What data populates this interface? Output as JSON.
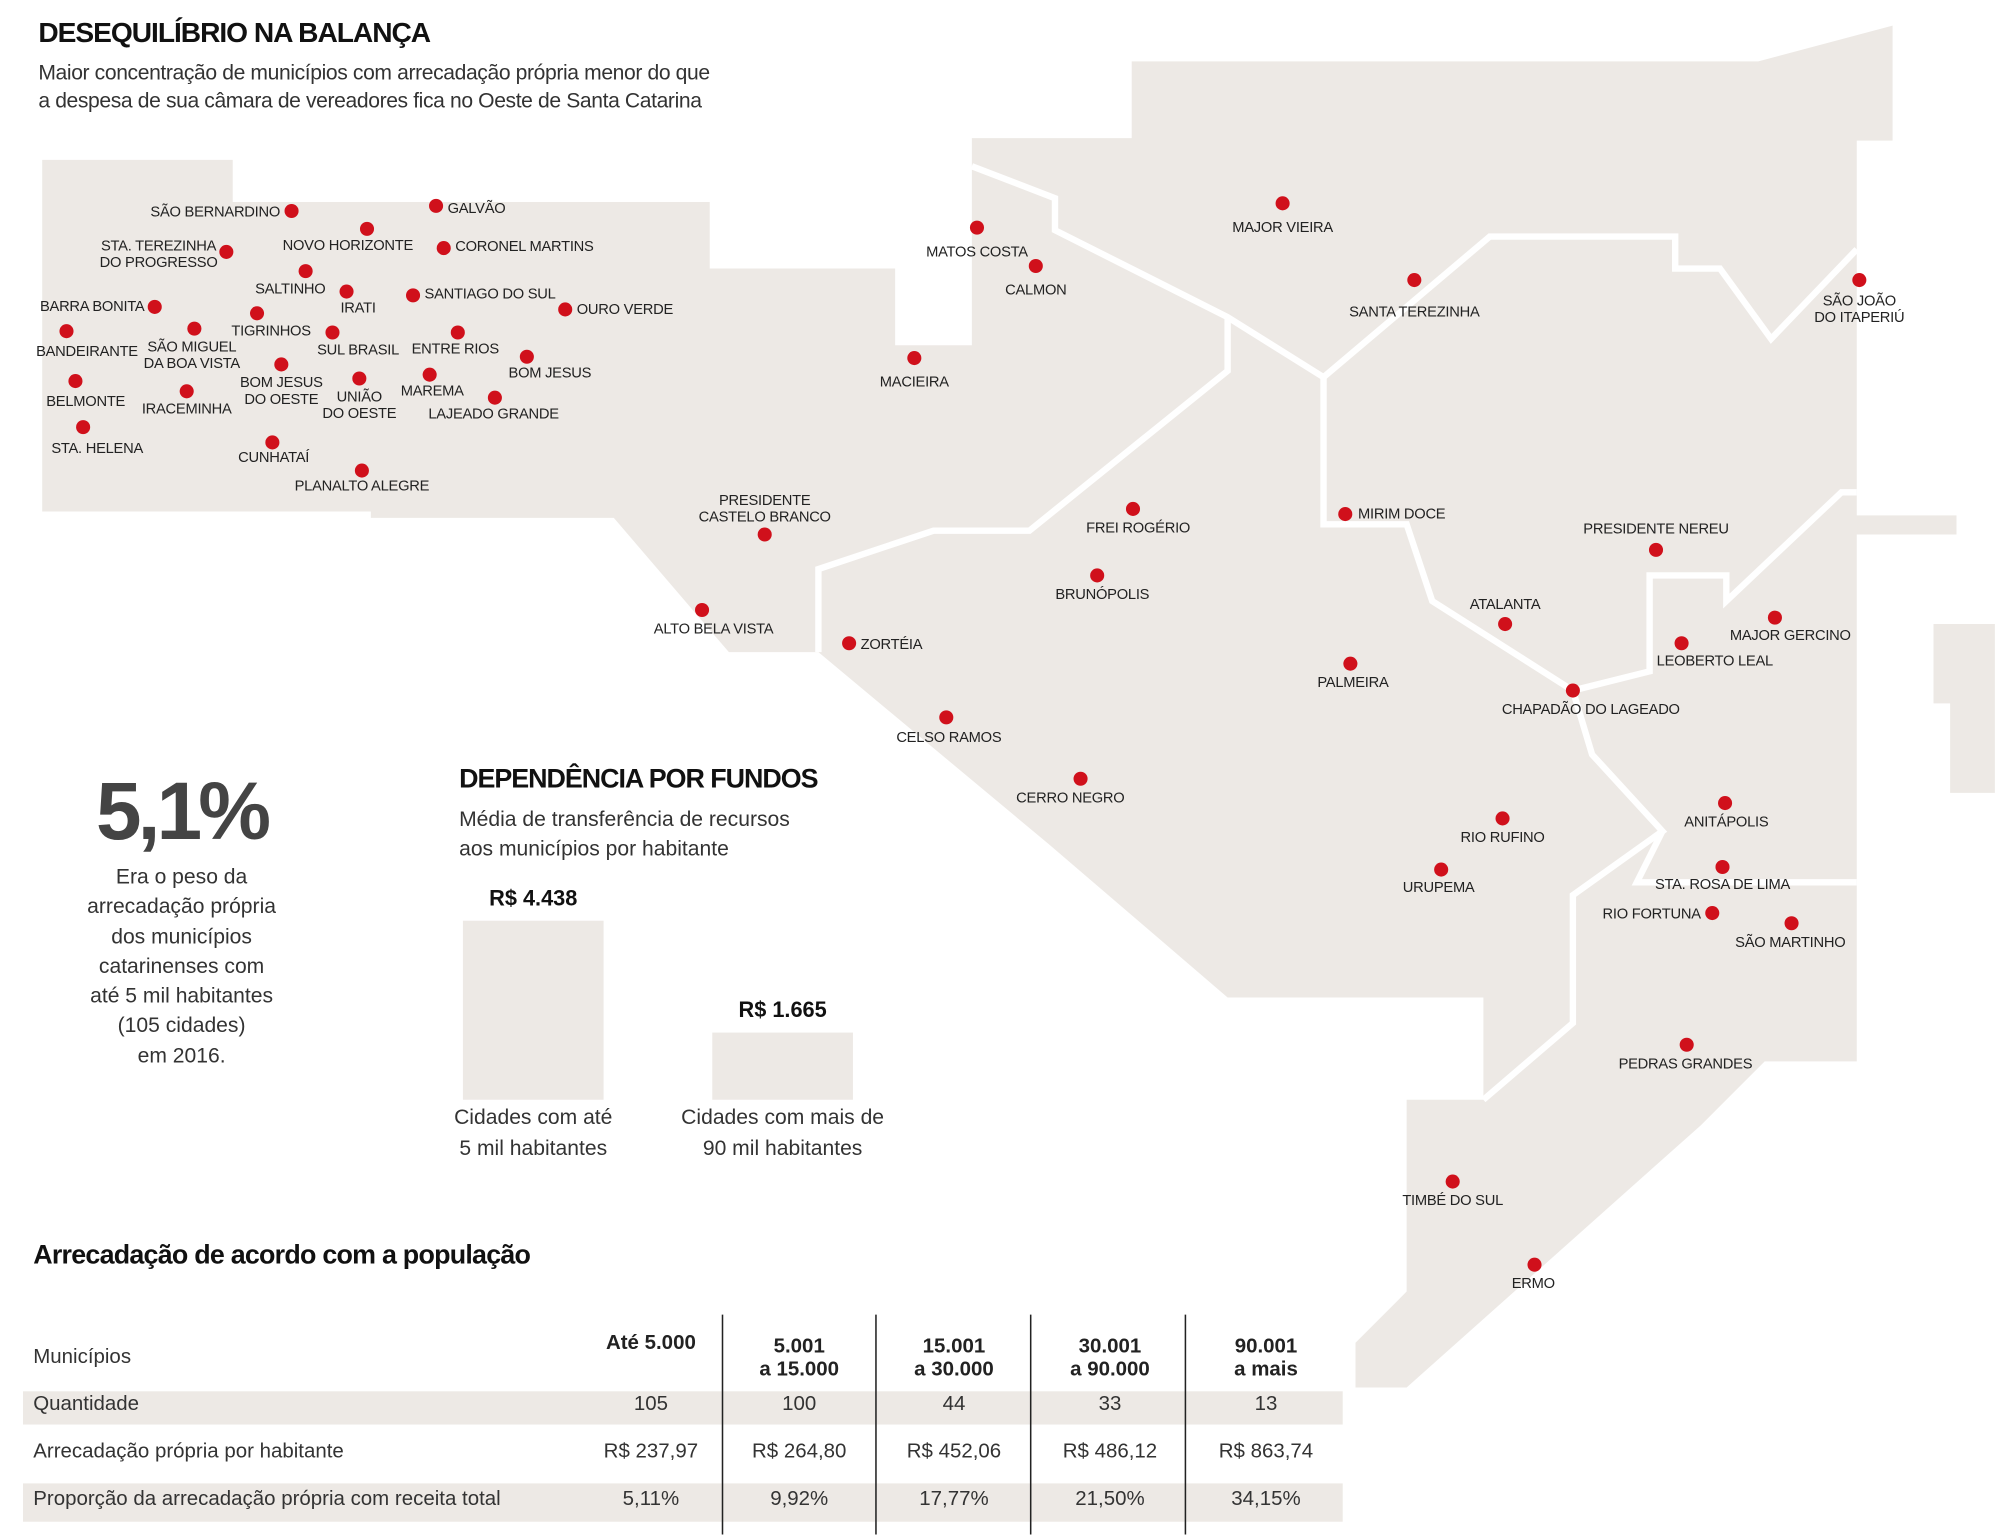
{
  "header": {
    "title": "DESEQUILÍBRIO NA BALANÇA",
    "subtitle": "Maior concentração de municípios com arrecadação própria menor do que\na despesa de sua câmara de vereadores fica no Oeste de Santa Catarina"
  },
  "map": {
    "cities": [
      "SÃO BERNARDINO",
      "GALVÃO",
      "NOVO HORIZONTE",
      "CORONEL MARTINS",
      "STA. TEREZINHA\nDO PROGRESSO",
      "SALTINHO",
      "IRATI",
      "SANTIAGO DO SUL",
      "OURO VERDE",
      "BARRA BONITA",
      "TIGRINHOS",
      "SÃO MIGUEL\nDA BOA VISTA",
      "BANDEIRANTE",
      "SUL BRASIL",
      "ENTRE RIOS",
      "BOM JESUS",
      "BOM JESUS\nDO OESTE",
      "UNIÃO\nDO OESTE",
      "MAREMA",
      "BELMONTE",
      "IRACEMINHA",
      "LAJEADO GRANDE",
      "STA. HELENA",
      "CUNHATAÍ",
      "PLANALTO ALEGRE",
      "MATOS COSTA",
      "CALMON",
      "MAJOR VIEIRA",
      "SANTA TEREZINHA",
      "SÃO JOÃO\nDO ITAPERIÚ",
      "MACIEIRA",
      "PRESIDENTE\nCASTELO BRANCO",
      "ALTO BELA VISTA",
      "FREI ROGÉRIO",
      "MIRIM DOCE",
      "PRESIDENTE NEREU",
      "BRUNÓPOLIS",
      "ZORTÉIA",
      "ATALANTA",
      "MAJOR GERCINO",
      "LEOBERTO LEAL",
      "PALMEIRA",
      "CHAPADÃO DO LAGEADO",
      "CELSO RAMOS",
      "CERRO NEGRO",
      "ANITÁPOLIS",
      "RIO RUFINO",
      "URUPEMA",
      "STA. ROSA DE LIMA",
      "RIO FORTUNA",
      "SÃO MARTINHO",
      "PEDRAS GRANDES",
      "TIMBÉ DO SUL",
      "ERMO"
    ]
  },
  "highlight": {
    "figure": "5,1%",
    "text": "Era o peso da\narrecadação própria\ndos municípios\ncatarinenses com\naté 5 mil habitantes\n(105 cidades)\nem 2016."
  },
  "chart_data": {
    "type": "bar",
    "title": "DEPENDÊNCIA POR FUNDOS",
    "subtitle": "Média de transferência de recursos\naos municípios por habitante",
    "categories": [
      "Cidades com até\n5 mil habitantes",
      "Cidades com mais de\n90 mil habitantes"
    ],
    "values": [
      4438,
      1665
    ],
    "value_labels": [
      "R$ 4.438",
      "R$ 1.665"
    ],
    "color": "#ede9e5"
  },
  "table": {
    "title": "Arrecadação de acordo com a população",
    "header": [
      "Municípios",
      "Até 5.000",
      "5.001\na 15.000",
      "15.001\na 30.000",
      "30.001\na 90.000",
      "90.001\na mais"
    ],
    "rows": [
      [
        "Quantidade",
        "105",
        "100",
        "44",
        "33",
        "13"
      ],
      [
        "Arrecadação própria por habitante",
        "R$ 237,97",
        "R$ 264,80",
        "R$ 452,06",
        "R$ 486,12",
        "R$ 863,74"
      ],
      [
        "Proporção da arrecadação própria com receita total",
        "5,11%",
        "9,92%",
        "17,77%",
        "21,50%",
        "34,15%"
      ]
    ]
  }
}
